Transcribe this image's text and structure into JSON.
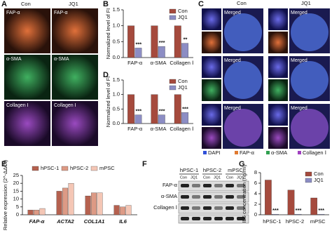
{
  "panel_letters": [
    "A",
    "B",
    "C",
    "D",
    "E",
    "F",
    "G"
  ],
  "panel_a": {
    "columns": [
      "Con",
      "JQ1"
    ],
    "rows": [
      "FAP-α",
      "α-SMA",
      "Collagen Ⅰ"
    ]
  },
  "panel_c": {
    "columns": [
      "Con",
      "JQ1"
    ],
    "tile_label": "Merged",
    "legend": [
      "DAPI",
      "FAP-α",
      "α-SMA",
      "Collagen Ⅰ"
    ]
  },
  "panel_f": {
    "groups": [
      "hPSC-1",
      "hPSC-2",
      "mPSC"
    ],
    "lanes": [
      "Con",
      "JQ1"
    ],
    "rows": [
      "FAP-α",
      "α-SMA",
      "Collagen Ⅰ"
    ]
  },
  "chart_data": [
    {
      "type": "bar",
      "y_label": "Normalized level of FI",
      "categories": [
        "FAP-α",
        "α-SMA",
        "Collagen Ⅰ"
      ],
      "series": [
        {
          "name": "Con",
          "color": "#a54a3d",
          "values": [
            1.0,
            1.0,
            1.0
          ]
        },
        {
          "name": "JQ1",
          "color": "#8c8dc4",
          "values": [
            0.3,
            0.35,
            0.45
          ]
        }
      ],
      "annotations": [
        "***",
        "***",
        "**"
      ],
      "ylim": [
        0,
        1.5
      ],
      "yticks": [
        {
          "value": 0,
          "label": "0.0"
        },
        {
          "value": 0.5,
          "label": "0.5"
        },
        {
          "value": 1,
          "label": "1.0"
        },
        {
          "value": 1.5,
          "label": "1.5"
        }
      ],
      "legend": "upper right"
    },
    {
      "type": "bar",
      "y_label": "Normalized level of FI",
      "categories": [
        "FAP-α",
        "α-SMA",
        "Collagen Ⅰ"
      ],
      "series": [
        {
          "name": "Con",
          "color": "#a54a3d",
          "values": [
            1.0,
            1.0,
            1.0
          ]
        },
        {
          "name": "JQ1",
          "color": "#8c8dc4",
          "values": [
            0.3,
            0.3,
            0.38
          ]
        }
      ],
      "annotations": [
        "***",
        "***",
        "***"
      ],
      "ylim": [
        0,
        1.5
      ],
      "yticks": [
        {
          "value": 0,
          "label": "0.0"
        },
        {
          "value": 0.5,
          "label": "0.5"
        },
        {
          "value": 1,
          "label": "1.0"
        },
        {
          "value": 1.5,
          "label": "1.5"
        }
      ],
      "legend": "upper right"
    },
    {
      "type": "bar",
      "y_label": "Relative expression (2^-ΔΔCt)",
      "categories": [
        "FAP-α",
        "ACTA2",
        "COL1A1",
        "IL6"
      ],
      "series": [
        {
          "name": "hPSC-1",
          "color": "#b5614f",
          "values": [
            3,
            15,
            12,
            6
          ]
        },
        {
          "name": "hPSC-2",
          "color": "#dd9a85",
          "values": [
            3,
            17,
            14,
            5
          ]
        },
        {
          "name": "mPSC",
          "color": "#f4c6b5",
          "values": [
            4,
            20,
            14,
            6
          ]
        }
      ],
      "ylim": [
        0,
        25
      ],
      "yticks": [
        0,
        5,
        10,
        15,
        20,
        25
      ],
      "legend": "top"
    },
    {
      "type": "bar",
      "y_label": "IL6 concentration (ng/ml)",
      "categories": [
        "hPSC-1",
        "hPSC-2",
        "mPSC"
      ],
      "series": [
        {
          "name": "Con",
          "color": "#a54a3d",
          "values": [
            6.6,
            4.7,
            3.2
          ]
        },
        {
          "name": "JQ1",
          "color": "#8c8dc4",
          "values": [
            0.1,
            0.1,
            0.1
          ]
        }
      ],
      "annotations": [
        "***",
        "***",
        "***"
      ],
      "ylim": [
        0,
        8
      ],
      "yticks": [
        0,
        2,
        4,
        6,
        8
      ],
      "legend": "upper right"
    }
  ]
}
